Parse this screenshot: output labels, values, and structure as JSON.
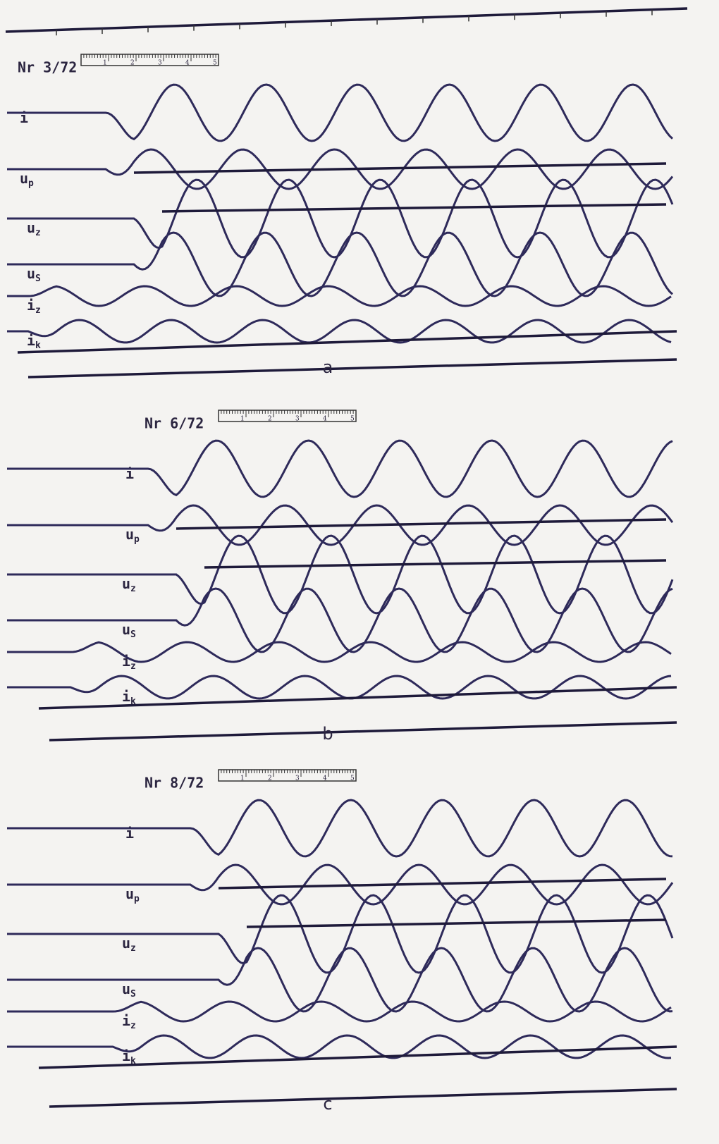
{
  "panels": [
    {
      "id": "Nr 3/72",
      "caption": "a",
      "scale_labels": [
        "1",
        "2",
        "3",
        "4",
        "5"
      ],
      "traces": [
        {
          "base": "i"
        },
        {
          "base": "u",
          "sub": "p"
        },
        {
          "base": "u",
          "sub": "z"
        },
        {
          "base": "u",
          "sub": "S"
        },
        {
          "base": "i",
          "sub": "z"
        },
        {
          "base": "i",
          "sub": "k"
        }
      ]
    },
    {
      "id": "Nr 6/72",
      "caption": "b",
      "scale_labels": [
        "1",
        "2",
        "3",
        "4",
        "5"
      ],
      "traces": [
        {
          "base": "i"
        },
        {
          "base": "u",
          "sub": "p"
        },
        {
          "base": "u",
          "sub": "z"
        },
        {
          "base": "u",
          "sub": "S"
        },
        {
          "base": "i",
          "sub": "z"
        },
        {
          "base": "i",
          "sub": "k"
        }
      ]
    },
    {
      "id": "Nr 8/72",
      "caption": "c",
      "scale_labels": [
        "1",
        "2",
        "3",
        "4",
        "5"
      ],
      "traces": [
        {
          "base": "i"
        },
        {
          "base": "u",
          "sub": "p"
        },
        {
          "base": "u",
          "sub": "z"
        },
        {
          "base": "u",
          "sub": "S"
        },
        {
          "base": "i",
          "sub": "z"
        },
        {
          "base": "i",
          "sub": "k"
        }
      ]
    }
  ]
}
